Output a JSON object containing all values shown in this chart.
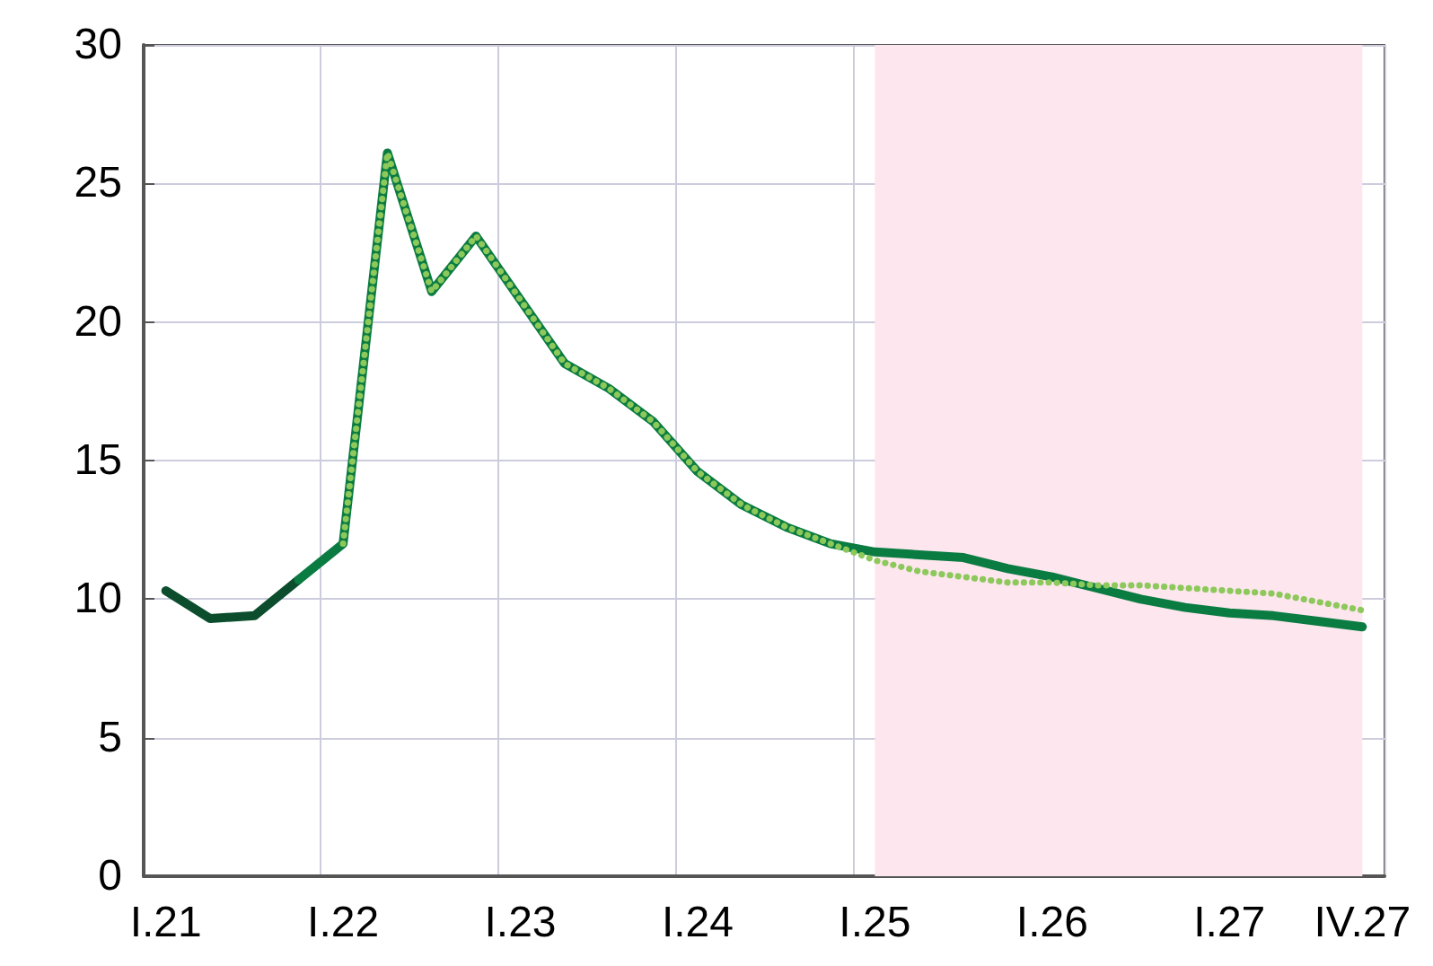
{
  "chart_data": {
    "type": "line",
    "categories": [
      "I.21",
      null,
      null,
      null,
      "I.22",
      null,
      null,
      null,
      "I.23",
      null,
      null,
      null,
      "I.24",
      null,
      null,
      null,
      "I.25",
      null,
      null,
      null,
      "I.26",
      null,
      null,
      null,
      "I.27",
      null,
      null,
      "IV.27"
    ],
    "series": [
      {
        "color": "#0b4d2c",
        "values": [
          10.3,
          9.3,
          9.4,
          10.7,
          null,
          null,
          null,
          null,
          null,
          null,
          null,
          null,
          null,
          null,
          null,
          null,
          null,
          null,
          null,
          null,
          null,
          null,
          null,
          null,
          null,
          null,
          null,
          null
        ]
      },
      {
        "color": "#0a7c42",
        "values": [
          null,
          null,
          null,
          10.7,
          12.0,
          26.1,
          21.1,
          23.1,
          20.8,
          18.5,
          17.6,
          16.4,
          14.6,
          13.4,
          12.6,
          12.0,
          11.7,
          11.6,
          11.5,
          11.1,
          10.8,
          10.4,
          10.0,
          9.7,
          9.5,
          9.4,
          9.2,
          9.0
        ]
      },
      {
        "color": "#8cc85a",
        "line_style": "dotted",
        "values": [
          null,
          null,
          null,
          null,
          12.0,
          26.1,
          21.1,
          23.1,
          20.8,
          18.5,
          17.6,
          16.4,
          14.6,
          13.4,
          12.6,
          12.0,
          11.4,
          11.0,
          10.8,
          10.6,
          10.6,
          10.5,
          10.5,
          10.4,
          10.3,
          10.2,
          9.9,
          9.6
        ]
      }
    ],
    "ylim": [
      0,
      30
    ],
    "yticks": [
      0,
      5,
      10,
      15,
      20,
      25,
      30
    ],
    "grid": true,
    "marker": "none",
    "line_style": "solid",
    "bands": [
      {
        "axis": "x",
        "from": "I.25",
        "to": "IV.27",
        "color": "#fde6ee"
      }
    ]
  }
}
